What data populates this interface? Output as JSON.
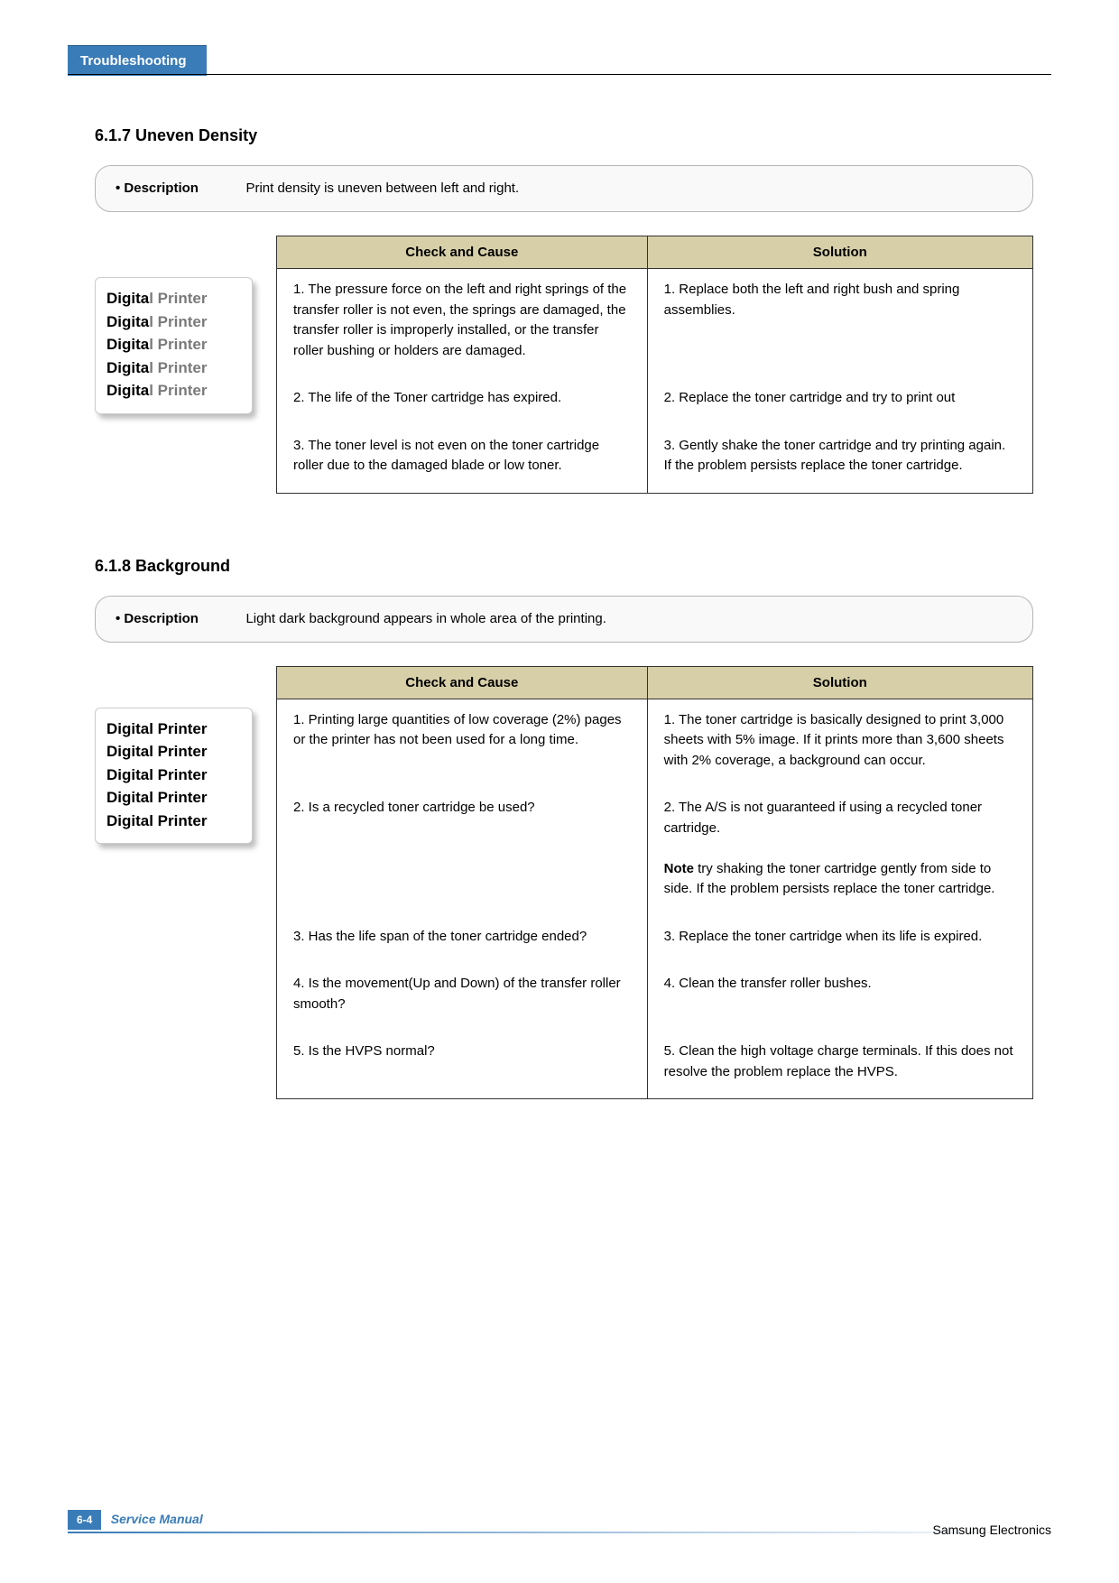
{
  "header": {
    "tab": "Troubleshooting"
  },
  "section1": {
    "title": "6.1.7  Uneven Density",
    "desc_label": "• Description",
    "desc_text": "Print density is uneven between left and right.",
    "badge": [
      "Digital Printer",
      "Digital Printer",
      "Digital Printer",
      "Digital Printer",
      "Digital Printer"
    ],
    "headers": {
      "cc": "Check and Cause",
      "sol": "Solution"
    },
    "rows": [
      {
        "cc": "1. The pressure force on the left and right springs of the transfer roller is not even, the springs are damaged, the transfer roller is improperly installed, or the transfer roller bushing or holders are damaged.",
        "sol": "1. Replace both the left and right bush and spring assemblies."
      },
      {
        "cc": "2. The life of the Toner cartridge has expired.",
        "sol": "2. Replace the toner cartridge and try to print out"
      },
      {
        "cc": "3. The toner level is not even on the toner cartridge roller due to the damaged blade or low toner.",
        "sol": "3. Gently shake the toner cartridge and try printing again. If the problem persists replace the toner cartridge."
      }
    ]
  },
  "section2": {
    "title": "6.1.8  Background",
    "desc_label": "• Description",
    "desc_text": "Light dark background appears in whole area of the printing.",
    "badge": [
      "Digital Printer",
      "Digital Printer",
      "Digital Printer",
      "Digital Printer",
      "Digital Printer"
    ],
    "headers": {
      "cc": "Check and Cause",
      "sol": "Solution"
    },
    "rows": [
      {
        "cc": "1. Printing large quantities of low coverage (2%) pages or the printer has not been used for a long time.",
        "sol": "1. The toner cartridge is basically designed to print 3,000 sheets with 5% image. If it prints more than 3,600 sheets with 2% coverage, a background can occur."
      },
      {
        "cc": "2. Is a recycled toner cartridge be used?",
        "sol": "2. The A/S is not guaranteed if using a recycled toner cartridge.",
        "note_label": "Note",
        "note_text": " try shaking the toner cartridge gently from side to side. If the problem persists replace the toner cartridge."
      },
      {
        "cc": "3. Has the life span of the toner cartridge ended?",
        "sol": "3. Replace the toner cartridge when its life is expired."
      },
      {
        "cc": "4. Is the movement(Up and Down) of the transfer roller smooth?",
        "sol": "4. Clean the transfer roller bushes."
      },
      {
        "cc": "5. Is the HVPS normal?",
        "sol": "5. Clean the high voltage charge terminals. If this does not resolve the problem replace the HVPS."
      }
    ]
  },
  "footer": {
    "page": "6-4",
    "manual": "Service Manual",
    "brand": "Samsung Electronics"
  },
  "colors": {
    "tab_bg": "#3a7cb8",
    "tab_fg": "#ffffff",
    "th_bg": "#d6cfa8",
    "border": "#333333",
    "grey_text": "#7a7a7a"
  }
}
